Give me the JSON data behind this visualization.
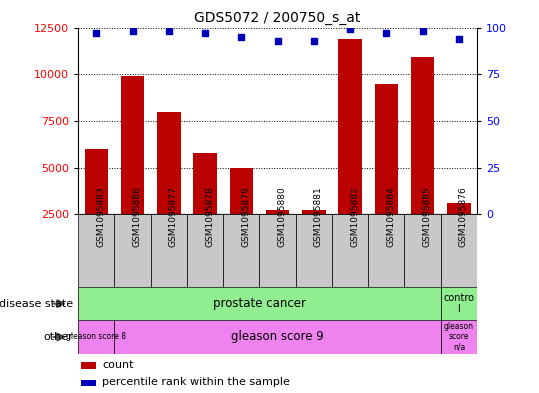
{
  "title": "GDS5072 / 200750_s_at",
  "samples": [
    "GSM1095883",
    "GSM1095886",
    "GSM1095877",
    "GSM1095878",
    "GSM1095879",
    "GSM1095880",
    "GSM1095881",
    "GSM1095882",
    "GSM1095884",
    "GSM1095885",
    "GSM1095876"
  ],
  "counts": [
    6000,
    9900,
    8000,
    5800,
    5000,
    2700,
    2750,
    11900,
    9500,
    10900,
    3100
  ],
  "percentile_ranks": [
    97,
    98,
    98,
    97,
    95,
    93,
    93,
    99,
    97,
    98,
    94
  ],
  "ylim_left": [
    2500,
    12500
  ],
  "ylim_right": [
    0,
    100
  ],
  "yticks_left": [
    2500,
    5000,
    7500,
    10000,
    12500
  ],
  "yticks_right": [
    0,
    25,
    50,
    75,
    100
  ],
  "bar_color": "#bb0000",
  "dot_color": "#0000bb",
  "disease_state_prostate": "prostate cancer",
  "disease_state_control": "contro\nl",
  "other_gleason8": "gleason score 8",
  "other_gleason9": "gleason score 9",
  "other_na": "gleason\nscore\nn/a",
  "color_prostate": "#90ee90",
  "color_control": "#90ee90",
  "color_gleason8": "#ee82ee",
  "color_gleason9": "#ee82ee",
  "color_na": "#ee82ee",
  "background_color": "#ffffff",
  "tick_bg_color": "#c8c8c8",
  "legend_count_color": "#bb0000",
  "legend_dot_color": "#0000bb"
}
